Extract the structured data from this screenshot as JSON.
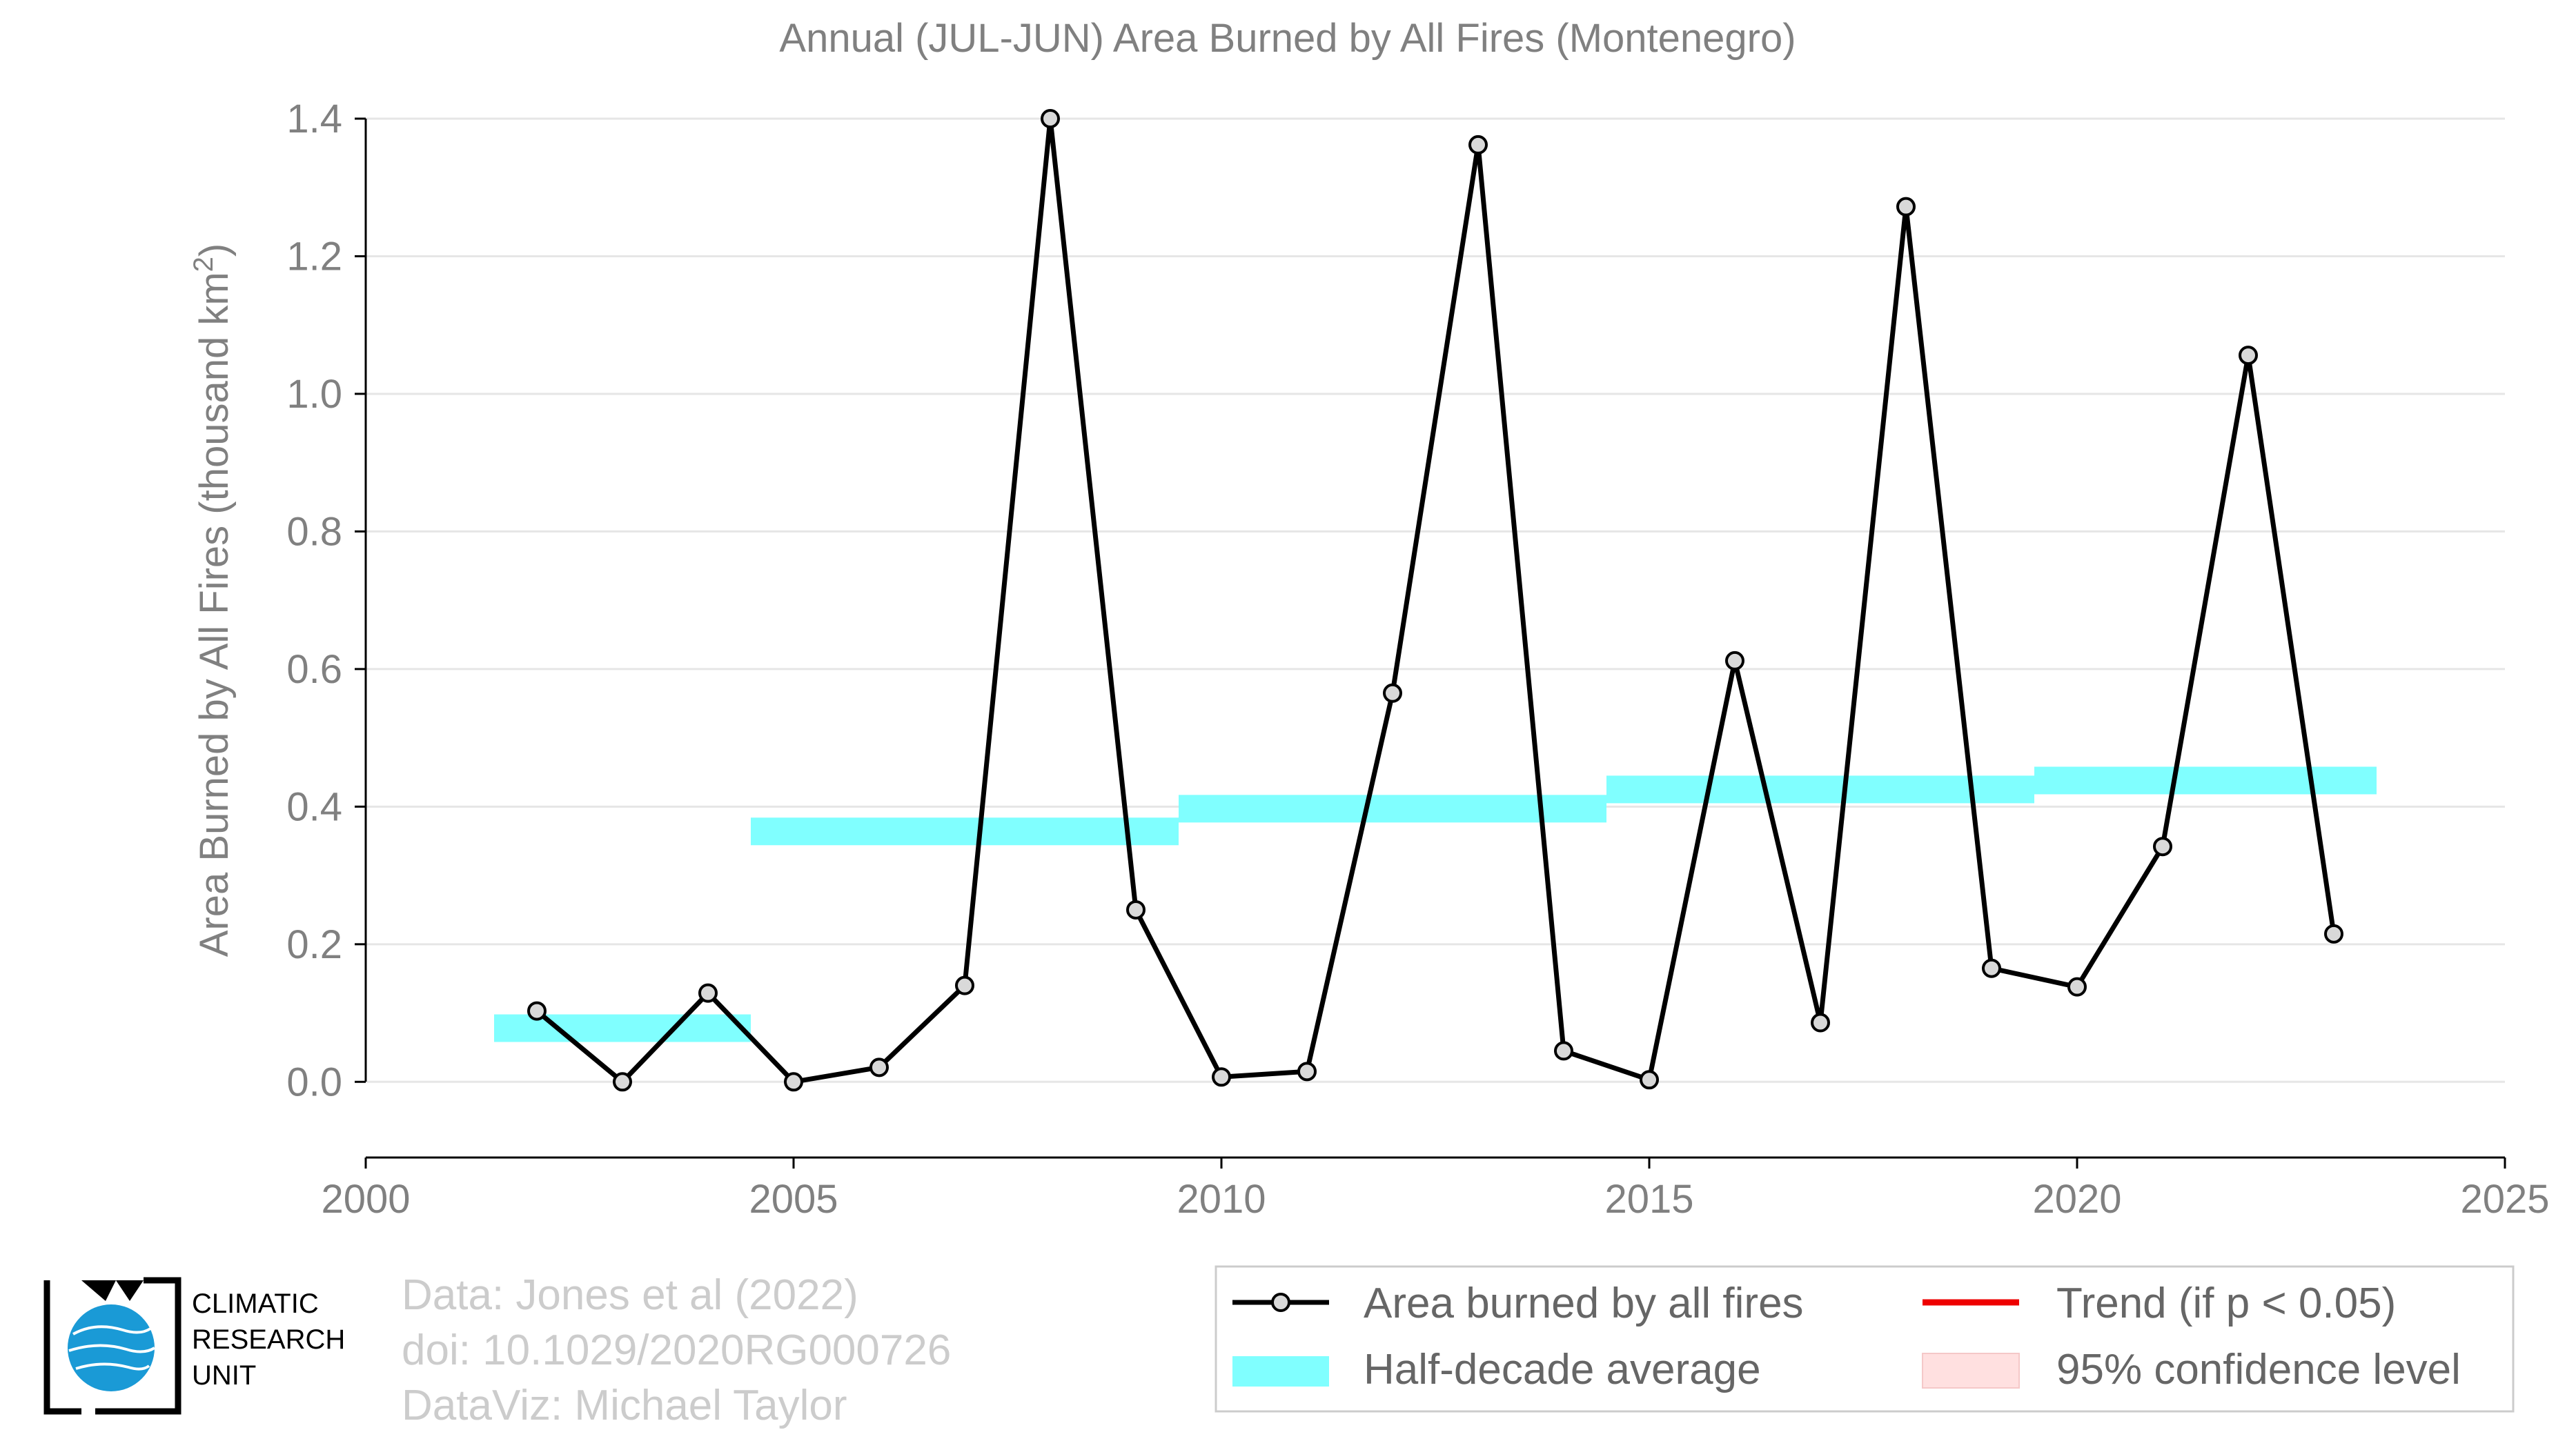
{
  "chart_data": {
    "type": "line",
    "title": "Annual (JUL-JUN) Area Burned by All Fires (Montenegro)",
    "ylabel": "Area Burned by All Fires (thousand km",
    "ylabel_sup": "2",
    "ylabel_end": ")",
    "xlim": [
      2000,
      2025
    ],
    "ylim": [
      -0.11,
      1.4
    ],
    "x_ticks": [
      "2000",
      "2005",
      "2010",
      "2015",
      "2020",
      "2025"
    ],
    "y_ticks": [
      "0.0",
      "0.2",
      "0.4",
      "0.6",
      "0.8",
      "1.0",
      "1.2",
      "1.4"
    ],
    "series": [
      {
        "name": "Area burned by all fires",
        "color": "#000000",
        "x": [
          2002,
          2003,
          2004,
          2005,
          2006,
          2007,
          2008,
          2009,
          2010,
          2011,
          2012,
          2013,
          2014,
          2015,
          2016,
          2017,
          2018,
          2019,
          2020,
          2021,
          2022,
          2023
        ],
        "y": [
          0.103,
          0.0,
          0.129,
          0.0,
          0.021,
          0.14,
          1.4,
          0.25,
          0.007,
          0.015,
          0.565,
          1.362,
          0.045,
          0.003,
          0.612,
          0.086,
          1.272,
          0.165,
          0.138,
          0.342,
          1.056,
          0.215
        ]
      }
    ],
    "half_decade_average": {
      "name": "Half-decade average",
      "color": "#80ffff",
      "segments": [
        {
          "x0": 2001.5,
          "x1": 2004.5,
          "y": 0.078
        },
        {
          "x0": 2004.5,
          "x1": 2009.5,
          "y": 0.364
        },
        {
          "x0": 2009.5,
          "x1": 2014.5,
          "y": 0.397
        },
        {
          "x0": 2014.5,
          "x1": 2019.5,
          "y": 0.425
        },
        {
          "x0": 2019.5,
          "x1": 2023.5,
          "y": 0.438
        }
      ]
    },
    "legend": {
      "placement": "bottom-right",
      "entries": [
        {
          "label": "Area burned by all fires",
          "kind": "line-marker",
          "color": "#000000"
        },
        {
          "label": "Trend (if p < 0.05)",
          "kind": "line",
          "color": "#ee0000"
        },
        {
          "label": "Half-decade average",
          "kind": "band",
          "color": "#80ffff"
        },
        {
          "label": "95% confidence level",
          "kind": "band",
          "color": "#ffe0e0"
        }
      ]
    },
    "grid": true
  },
  "credits": {
    "line1": "Data: Jones et al (2022)",
    "line2": "doi: 10.1029/2020RG000726",
    "line3": "DataViz: Michael Taylor"
  },
  "logo": {
    "line1": "CLIMATIC",
    "line2": "RESEARCH",
    "line3": "UNIT"
  }
}
